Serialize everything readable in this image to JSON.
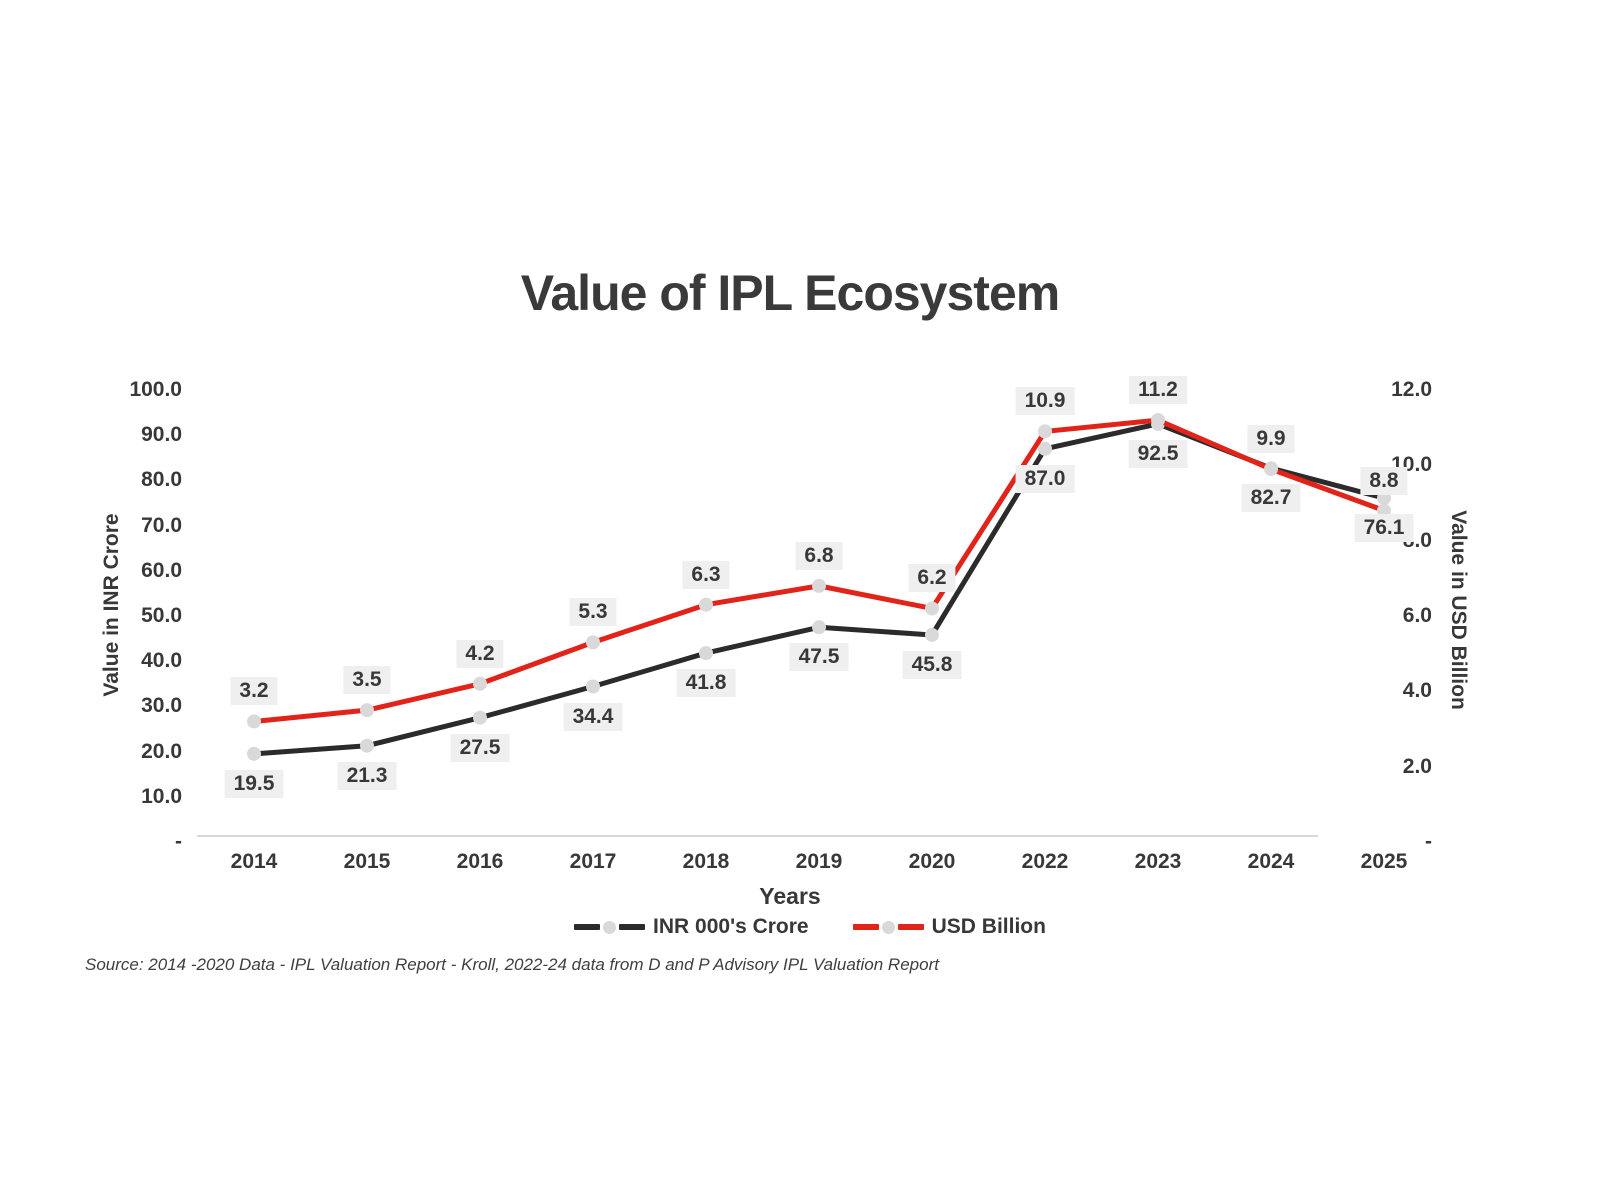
{
  "title": "Value of IPL Ecosystem",
  "source": "Source: 2014 -2020 Data - IPL Valuation Report - Kroll, 2022-24 data from D and P Advisory IPL Valuation Report",
  "colors": {
    "inr_line": "#2b2b2b",
    "usd_line": "#e2231a",
    "marker": "#d9d9d9",
    "label_bg": "#efefef",
    "axis_line": "#d9d9d9",
    "text": "#383838"
  },
  "chart_data": {
    "type": "line",
    "title": "Value of IPL Ecosystem",
    "xlabel": "Years",
    "grid": false,
    "legend_position": "bottom",
    "categories": [
      "2014",
      "2015",
      "2016",
      "2017",
      "2018",
      "2019",
      "2020",
      "2022",
      "2023",
      "2024",
      "2025"
    ],
    "series": [
      {
        "name": "INR 000's Crore",
        "axis": "left",
        "color": "#2b2b2b",
        "label_position": "below",
        "values": [
          19.5,
          21.3,
          27.5,
          34.4,
          41.8,
          47.5,
          45.8,
          87.0,
          92.5,
          82.7,
          76.1
        ]
      },
      {
        "name": "USD Billion",
        "axis": "right",
        "color": "#e2231a",
        "label_position": "above",
        "values": [
          3.2,
          3.5,
          4.2,
          5.3,
          6.3,
          6.8,
          6.2,
          10.9,
          11.2,
          9.9,
          8.8
        ]
      }
    ],
    "left_axis": {
      "title": "Value in INR Crore",
      "max": 100,
      "ticks": [
        {
          "v": 100,
          "t": "100.0"
        },
        {
          "v": 90,
          "t": "90.0"
        },
        {
          "v": 80,
          "t": "80.0"
        },
        {
          "v": 70,
          "t": "70.0"
        },
        {
          "v": 60,
          "t": "60.0"
        },
        {
          "v": 50,
          "t": "50.0"
        },
        {
          "v": 40,
          "t": "40.0"
        },
        {
          "v": 30,
          "t": "30.0"
        },
        {
          "v": 20,
          "t": "20.0"
        },
        {
          "v": 10,
          "t": "10.0"
        },
        {
          "v": 0,
          "t": "-"
        }
      ]
    },
    "right_axis": {
      "title": "Value in USD Billion",
      "max": 12,
      "ticks": [
        {
          "v": 12,
          "t": "12.0"
        },
        {
          "v": 10,
          "t": "10.0"
        },
        {
          "v": 8,
          "t": "8.0"
        },
        {
          "v": 6,
          "t": "6.0"
        },
        {
          "v": 4,
          "t": "4.0"
        },
        {
          "v": 2,
          "t": "2.0"
        },
        {
          "v": 0,
          "t": "-"
        }
      ]
    },
    "legend": [
      "INR 000's Crore",
      "USD Billion"
    ]
  }
}
